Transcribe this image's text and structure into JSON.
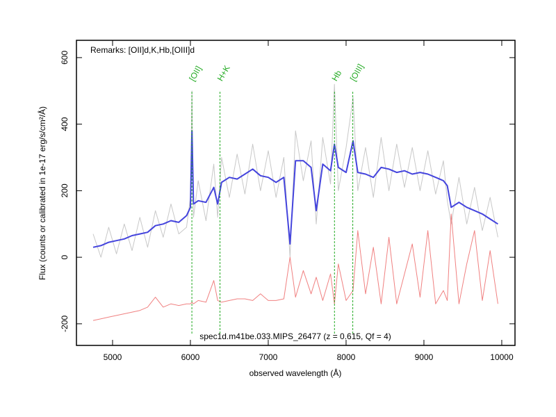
{
  "chart_data": {
    "type": "line",
    "remarks": "Remarks: [OII]d,K,Hb,[OIII]d",
    "caption": "spec1d.m41be.033.MIPS_26477 (z = 0.615, Qf = 4)",
    "x_label": "observed wavelength (Å)",
    "y_label": "Flux (counts or calibrated in 1e-17 erg/s/cm²/Å)",
    "xlim": [
      4536,
      10170
    ],
    "ylim": [
      -265,
      652
    ],
    "xticks": [
      5000,
      6000,
      7000,
      8000,
      9000,
      10000
    ],
    "yticks": [
      -200,
      0,
      200,
      400,
      600
    ],
    "x": [
      4750,
      4850,
      4950,
      5050,
      5150,
      5250,
      5350,
      5450,
      5550,
      5650,
      5750,
      5850,
      5950,
      6000,
      6020,
      6040,
      6100,
      6200,
      6300,
      6350,
      6400,
      6500,
      6600,
      6700,
      6800,
      6900,
      7000,
      7100,
      7200,
      7280,
      7350,
      7450,
      7550,
      7616,
      7700,
      7800,
      7850,
      7900,
      8000,
      8090,
      8150,
      8250,
      8350,
      8450,
      8550,
      8650,
      8750,
      8850,
      8950,
      9050,
      9150,
      9250,
      9300,
      9350,
      9450,
      9550,
      9650,
      9750,
      9850,
      9950
    ],
    "series": [
      {
        "color": "#c8c8c8",
        "width": 1,
        "values": [
          70,
          0,
          90,
          10,
          100,
          20,
          120,
          30,
          140,
          60,
          160,
          70,
          90,
          180,
          500,
          120,
          230,
          110,
          280,
          120,
          300,
          180,
          310,
          190,
          340,
          200,
          320,
          180,
          300,
          0,
          380,
          230,
          350,
          100,
          360,
          220,
          520,
          200,
          330,
          480,
          200,
          330,
          180,
          360,
          200,
          340,
          210,
          330,
          200,
          320,
          190,
          290,
          170,
          100,
          240,
          100,
          210,
          80,
          180,
          60
        ]
      },
      {
        "color": "#f08080",
        "width": 1,
        "values": [
          -190,
          -185,
          -180,
          -175,
          -170,
          -165,
          -160,
          -150,
          -120,
          -150,
          -140,
          -145,
          -140,
          -140,
          -135,
          -140,
          -130,
          -135,
          -70,
          -130,
          -135,
          -130,
          -125,
          -125,
          -130,
          -110,
          -130,
          -130,
          -125,
          0,
          -120,
          -40,
          -110,
          -60,
          -130,
          -50,
          -140,
          -20,
          -130,
          -100,
          80,
          -110,
          30,
          -140,
          60,
          -140,
          -50,
          40,
          -120,
          80,
          -140,
          -100,
          -130,
          130,
          -140,
          -20,
          80,
          -130,
          20,
          -140
        ]
      },
      {
        "color": "#4444dd",
        "width": 2,
        "values": [
          30,
          35,
          45,
          50,
          55,
          65,
          70,
          75,
          95,
          100,
          110,
          105,
          125,
          150,
          380,
          160,
          170,
          165,
          210,
          160,
          225,
          240,
          235,
          250,
          265,
          245,
          240,
          225,
          240,
          40,
          290,
          290,
          270,
          140,
          280,
          260,
          340,
          270,
          255,
          350,
          255,
          250,
          240,
          270,
          265,
          255,
          260,
          250,
          255,
          250,
          240,
          230,
          215,
          150,
          165,
          150,
          140,
          130,
          115,
          100
        ]
      }
    ],
    "lines": [
      {
        "label": "[OII]",
        "x": 6019
      },
      {
        "label": "H+K",
        "x": 6380
      },
      {
        "label": "Hb",
        "x": 7851
      },
      {
        "label": "[OIII]",
        "x": 8086
      }
    ],
    "line_color": "#22aa22"
  }
}
